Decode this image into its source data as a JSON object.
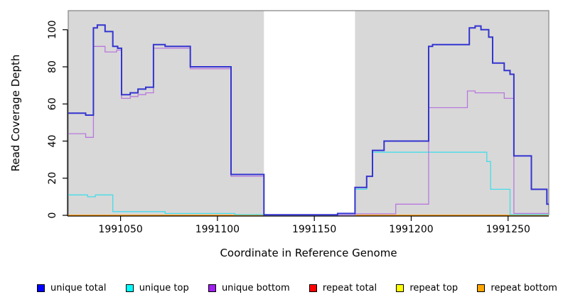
{
  "chart_data": {
    "type": "step_line",
    "title": "",
    "xlabel": "Coordinate in Reference Genome",
    "ylabel": "Read Coverage Depth",
    "xlim": [
      1991023,
      1991271
    ],
    "ylim": [
      0,
      110
    ],
    "x_ticks": [
      1991050,
      1991100,
      1991150,
      1991200,
      1991250
    ],
    "y_ticks": [
      0,
      20,
      40,
      60,
      80,
      100
    ],
    "grid": false,
    "legend_position": "bottom",
    "panel_border_color": "#848484",
    "axis_color": "#000000",
    "shaded_regions": [
      {
        "x0": 1991023,
        "x1": 1991124,
        "color": "#d8d8d8"
      },
      {
        "x0": 1991171,
        "x1": 1991271,
        "color": "#d8d8d8"
      }
    ],
    "legend": [
      {
        "label": "unique total",
        "color": "#0000ff"
      },
      {
        "label": "unique top",
        "color": "#00ffff"
      },
      {
        "label": "unique bottom",
        "color": "#a020f0"
      },
      {
        "label": "repeat total",
        "color": "#ff0000"
      },
      {
        "label": "repeat top",
        "color": "#ffff00"
      },
      {
        "label": "repeat bottom",
        "color": "#ffa500"
      }
    ],
    "series": [
      {
        "name": "repeat total",
        "line_color": "#ff0000",
        "line_width": 1.2,
        "segments": [
          {
            "points": [
              [
                1991023,
                0
              ]
            ],
            "end": 1991124
          },
          {
            "points": [
              [
                1991171,
                0
              ]
            ],
            "end": 1991271
          }
        ]
      },
      {
        "name": "repeat top",
        "line_color": "#ffff00",
        "line_width": 1.2,
        "segments": [
          {
            "points": [
              [
                1991023,
                0
              ]
            ],
            "end": 1991124
          },
          {
            "points": [
              [
                1991171,
                0
              ]
            ],
            "end": 1991271
          }
        ]
      },
      {
        "name": "repeat bottom",
        "line_color": "#ff9f14",
        "line_width": 1.8,
        "segments": [
          {
            "points": [
              [
                1991023,
                0
              ]
            ],
            "end": 1991124
          },
          {
            "points": [
              [
                1991171,
                0
              ]
            ],
            "end": 1991271
          }
        ]
      },
      {
        "name": "unique top",
        "line_color": "#45dce8",
        "line_width": 1.3,
        "segments": [
          {
            "points": [
              [
                1991023,
                11
              ],
              [
                1991033,
                10
              ],
              [
                1991037,
                11
              ],
              [
                1991046,
                2
              ],
              [
                1991073,
                1
              ],
              [
                1991109,
                0.4
              ],
              [
                1991124,
                0.2
              ],
              [
                1991171,
                14
              ],
              [
                1991177,
                21
              ],
              [
                1991180,
                34
              ],
              [
                1991239,
                29
              ],
              [
                1991241,
                14
              ],
              [
                1991251,
                0.4
              ]
            ],
            "end": 1991271
          }
        ]
      },
      {
        "name": "unique bottom",
        "line_color": "#b878dd",
        "line_width": 1.3,
        "segments": [
          {
            "points": [
              [
                1991023,
                44
              ],
              [
                1991032,
                42
              ],
              [
                1991036,
                91
              ],
              [
                1991042,
                88
              ],
              [
                1991048,
                89
              ],
              [
                1991050.5,
                63
              ],
              [
                1991055,
                64
              ],
              [
                1991059,
                65
              ],
              [
                1991063,
                66
              ],
              [
                1991067,
                90
              ],
              [
                1991086,
                79
              ],
              [
                1991107,
                21
              ],
              [
                1991124,
                0.2
              ],
              [
                1991171,
                0.8
              ],
              [
                1991192,
                6
              ],
              [
                1991209,
                58
              ],
              [
                1991229,
                67
              ],
              [
                1991233,
                66
              ],
              [
                1991248,
                63
              ],
              [
                1991253,
                1
              ]
            ],
            "end": 1991271
          }
        ]
      },
      {
        "name": "unique total",
        "line_color": "#3434d0",
        "line_width": 2,
        "segments": [
          {
            "points": [
              [
                1991023,
                55
              ],
              [
                1991032,
                54
              ],
              [
                1991036,
                101
              ],
              [
                1991038,
                102.5
              ],
              [
                1991042,
                99
              ],
              [
                1991046,
                91
              ],
              [
                1991048.5,
                90
              ],
              [
                1991050.5,
                65
              ],
              [
                1991055,
                66
              ],
              [
                1991059,
                68
              ],
              [
                1991063,
                69
              ],
              [
                1991067,
                92
              ],
              [
                1991073,
                91
              ],
              [
                1991086,
                80
              ],
              [
                1991107,
                22
              ],
              [
                1991124,
                0.3
              ],
              [
                1991162,
                1
              ],
              [
                1991171,
                15
              ],
              [
                1991177,
                21
              ],
              [
                1991180,
                35
              ],
              [
                1991186,
                40
              ],
              [
                1991209,
                91
              ],
              [
                1991211,
                92
              ],
              [
                1991230,
                101
              ],
              [
                1991233,
                102
              ],
              [
                1991236,
                100
              ],
              [
                1991240,
                96
              ],
              [
                1991242,
                82
              ],
              [
                1991248,
                78
              ],
              [
                1991251,
                76
              ],
              [
                1991253,
                32
              ],
              [
                1991262,
                14
              ],
              [
                1991270,
                6
              ]
            ],
            "end": 1991271
          }
        ]
      }
    ]
  }
}
